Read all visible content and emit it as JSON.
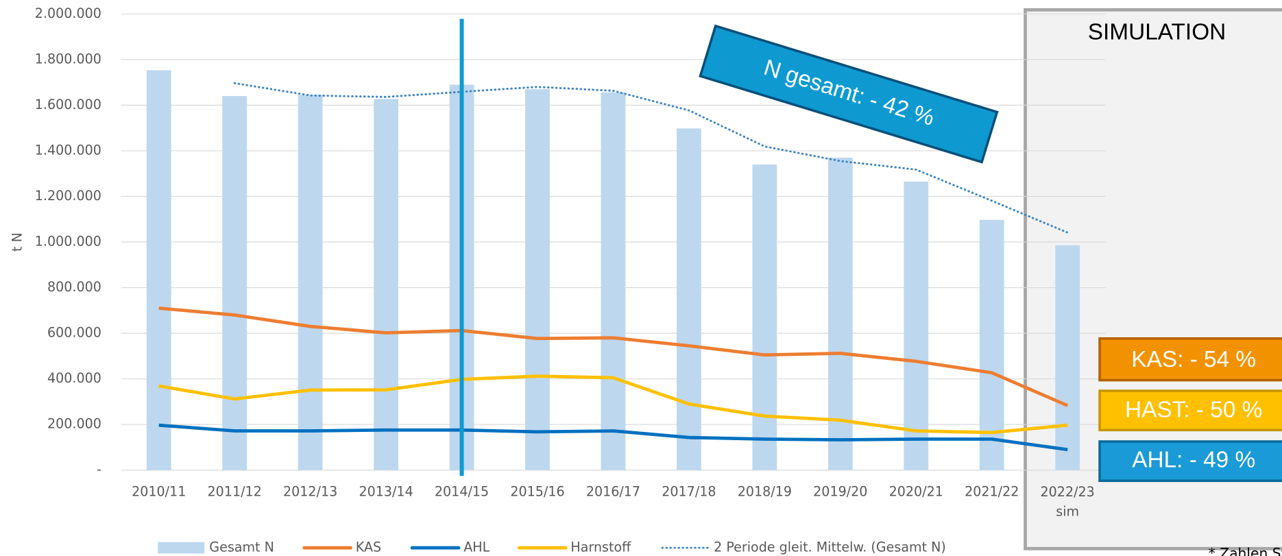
{
  "chart_data": {
    "type": "combo",
    "y_axis_label": "t N",
    "categories": [
      "2010/11",
      "2011/12",
      "2012/13",
      "2013/14",
      "2014/15",
      "2015/16",
      "2016/17",
      "2017/18",
      "2018/19",
      "2019/20",
      "2020/21",
      "2021/22",
      "2022/23\nsim"
    ],
    "series": [
      {
        "name": "Gesamt N",
        "kind": "bar",
        "color": "#bdd7ee",
        "values": [
          1753000,
          1640000,
          1645000,
          1627000,
          1690000,
          1670000,
          1656000,
          1498000,
          1340000,
          1370000,
          1265000,
          1097000,
          986000
        ]
      },
      {
        "name": "KAS",
        "kind": "line",
        "color": "#ed7d31",
        "values": [
          710000,
          680000,
          630000,
          602000,
          612000,
          577000,
          580000,
          545000,
          505000,
          512000,
          477000,
          427000,
          283000
        ]
      },
      {
        "name": "AHL",
        "kind": "line",
        "color": "#0070c0",
        "values": [
          197000,
          172000,
          172000,
          176000,
          176000,
          168000,
          172000,
          143000,
          136000,
          133000,
          136000,
          136000,
          90000
        ]
      },
      {
        "name": "Harnstoff",
        "kind": "line",
        "color": "#ffc000",
        "values": [
          369000,
          312000,
          351000,
          352000,
          398000,
          412000,
          405000,
          290000,
          237000,
          219000,
          172000,
          165000,
          197000
        ]
      },
      {
        "name": "2 Periode gleit. Mittelw. (Gesamt N)",
        "kind": "dotted",
        "color": "#3c85c8",
        "values": [
          null,
          1696500,
          1642500,
          1636000,
          1658500,
          1680000,
          1663000,
          1577000,
          1419000,
          1355000,
          1317500,
          1181000,
          1041500
        ]
      }
    ],
    "ylim": [
      0,
      2000000
    ],
    "yticks": [
      {
        "value": 0,
        "label": "-"
      },
      {
        "value": 200000,
        "label": "200.000"
      },
      {
        "value": 400000,
        "label": "400.000"
      },
      {
        "value": 600000,
        "label": "600.000"
      },
      {
        "value": 800000,
        "label": "800.000"
      },
      {
        "value": 1000000,
        "label": "1.000.000"
      },
      {
        "value": 1200000,
        "label": "1.200.000"
      },
      {
        "value": 1400000,
        "label": "1.400.000"
      },
      {
        "value": 1600000,
        "label": "1.600.000"
      },
      {
        "value": 1800000,
        "label": "1.800.000"
      },
      {
        "value": 2000000,
        "label": "2.000.000"
      }
    ],
    "grid": true,
    "vertical_line": {
      "category": "2014/15",
      "color": "#0e9ad1"
    },
    "annotations": {
      "simulation": "SIMULATION",
      "n_total": "N gesamt: - 42 %",
      "kas": "KAS: - 54 %",
      "hast": "HAST: - 50 %",
      "ahl": "AHL: - 49 %",
      "source": "* Zahlen Statist. Bundesamt"
    }
  }
}
